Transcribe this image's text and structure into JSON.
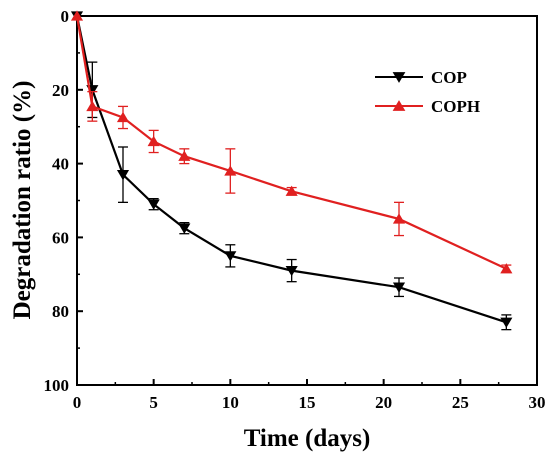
{
  "chart_data": {
    "type": "line",
    "title": "",
    "xlabel": "Time (days)",
    "ylabel": "Degradation ratio (%)",
    "xlim": [
      0,
      30
    ],
    "ylim": [
      0,
      100
    ],
    "y_inverted": true,
    "x_ticks": [
      "0",
      "5",
      "10",
      "15",
      "20",
      "25",
      "30"
    ],
    "y_ticks": [
      "0",
      "20",
      "40",
      "60",
      "80",
      "100"
    ],
    "grid": false,
    "legend_position": "top-right",
    "series": [
      {
        "name": "COP",
        "color": "#000000",
        "marker": "triangle-down",
        "x": [
          0,
          1,
          3,
          5,
          7,
          10,
          14,
          21,
          28
        ],
        "y": [
          0,
          20,
          43,
          51,
          57.5,
          65,
          69,
          73.5,
          83
        ],
        "error": [
          0,
          7.5,
          7.5,
          1.5,
          1.5,
          3,
          3,
          2.5,
          2
        ]
      },
      {
        "name": "COPH",
        "color": "#e02020",
        "marker": "triangle-up",
        "x": [
          0,
          1,
          3,
          5,
          7,
          10,
          14,
          21,
          28
        ],
        "y": [
          0,
          24.5,
          27.5,
          34,
          38,
          42,
          47.5,
          55,
          68.5
        ],
        "error": [
          0,
          4,
          3,
          3,
          2,
          6,
          1,
          4.5,
          1
        ]
      }
    ]
  }
}
